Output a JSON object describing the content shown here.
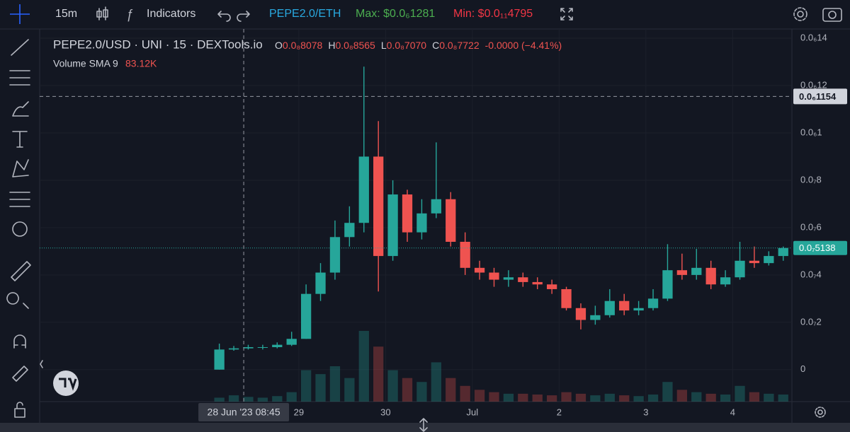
{
  "toolbar": {
    "interval": "15m",
    "indicators": "Indicators",
    "pair": "PEPE2.0/ETH",
    "max": "Max: $0.0₆1281",
    "min": "Min: $0.0₁₁4795"
  },
  "chart_data": {
    "type": "candlestick",
    "title": "PEPE2.0/USD · UNI · 15 · DEXTools.io",
    "ohlc": [
      {
        "key": "O",
        "value": "0.0₈8078"
      },
      {
        "key": "H",
        "value": "0.0₈8565"
      },
      {
        "key": "L",
        "value": "0.0₈7070"
      },
      {
        "key": "C",
        "value": "0.0₈7722"
      }
    ],
    "change": "-0.0000 (−4.41%)",
    "volume_label": "Volume SMA 9",
    "volume_sma": "83.12K",
    "x": [
      2,
      6,
      10,
      14,
      18,
      22,
      26,
      30,
      34,
      38,
      42,
      46,
      50,
      54,
      58,
      62,
      66,
      70,
      74,
      78,
      82,
      86,
      90,
      94,
      98,
      102,
      106,
      110,
      114,
      118,
      122,
      126,
      130,
      134,
      138,
      142,
      146,
      150,
      154,
      158
    ],
    "open": [
      0,
      8.5e-09,
      9e-09,
      9.5e-09,
      9.5e-09,
      1.05e-08,
      1.3e-08,
      3.2e-08,
      4.1e-08,
      5.6e-08,
      6.2e-08,
      9e-08,
      4.8e-08,
      7.4e-08,
      5.8e-08,
      6.6e-08,
      7.2e-08,
      5.4e-08,
      4.3e-08,
      4.1e-08,
      3.8e-08,
      3.9e-08,
      3.7e-08,
      3.6e-08,
      3.4e-08,
      2.6e-08,
      2.1e-08,
      2.3e-08,
      2.9e-08,
      2.5e-08,
      2.6e-08,
      3e-08,
      4.2e-08,
      4e-08,
      4.3e-08,
      3.6e-08,
      3.9e-08,
      4.6e-08,
      4.5e-08,
      4.8e-08
    ],
    "high": [
      1.1e-08,
      1e-08,
      1.05e-08,
      1.05e-08,
      1.15e-08,
      1.6e-08,
      3.6e-08,
      4.5e-08,
      6.3e-08,
      6.9e-08,
      1.28e-07,
      1.05e-07,
      8e-08,
      7.6e-08,
      7.2e-08,
      9.6e-08,
      7.5e-08,
      5.8e-08,
      4.6e-08,
      4.3e-08,
      4.2e-08,
      4.1e-08,
      3.9e-08,
      3.8e-08,
      3.5e-08,
      2.8e-08,
      2.7e-08,
      3.4e-08,
      3.2e-08,
      2.9e-08,
      3.4e-08,
      5.3e-08,
      4.9e-08,
      5.1e-08,
      4.6e-08,
      4.2e-08,
      5.4e-08,
      5.2e-08,
      5e-08,
      5.2e-08
    ],
    "low": [
      0,
      8e-09,
      8.5e-09,
      8.5e-09,
      9e-09,
      1e-08,
      1.3e-08,
      2.9e-08,
      3.8e-08,
      5.2e-08,
      5.8e-08,
      3.3e-08,
      4.6e-08,
      5.4e-08,
      5.5e-08,
      6.4e-08,
      5.2e-08,
      4e-08,
      3.8e-08,
      3.5e-08,
      3.5e-08,
      3.5e-08,
      3.4e-08,
      3.2e-08,
      2.5e-08,
      1.7e-08,
      1.9e-08,
      2.2e-08,
      2.3e-08,
      2.3e-08,
      2.5e-08,
      2.9e-08,
      3.8e-08,
      3.8e-08,
      3.4e-08,
      3.5e-08,
      3.8e-08,
      4.3e-08,
      4.4e-08,
      4.6e-08
    ],
    "close": [
      8.5e-09,
      9e-09,
      9.5e-09,
      9.5e-09,
      1.05e-08,
      1.3e-08,
      3.2e-08,
      4.1e-08,
      5.6e-08,
      6.2e-08,
      9e-08,
      4.8e-08,
      7.4e-08,
      5.8e-08,
      6.6e-08,
      7.2e-08,
      5.4e-08,
      4.3e-08,
      4.1e-08,
      3.8e-08,
      3.9e-08,
      3.7e-08,
      3.6e-08,
      3.4e-08,
      2.6e-08,
      2.1e-08,
      2.3e-08,
      2.9e-08,
      2.5e-08,
      2.6e-08,
      3e-08,
      4.2e-08,
      4e-08,
      4.3e-08,
      3.6e-08,
      3.9e-08,
      4.6e-08,
      4.5e-08,
      4.8e-08,
      5.138e-08
    ],
    "volume": [
      5,
      8,
      6,
      5,
      7,
      12,
      40,
      35,
      45,
      30,
      90,
      70,
      40,
      30,
      25,
      50,
      30,
      20,
      15,
      12,
      10,
      10,
      9,
      8,
      12,
      10,
      8,
      10,
      8,
      7,
      9,
      25,
      15,
      12,
      10,
      9,
      20,
      12,
      10,
      9
    ],
    "up_color": "#26a69a",
    "down_color": "#ef5350",
    "xlim": [
      -47.7,
      160.4
    ],
    "xticks": [
      {
        "value": 24,
        "label": "29"
      },
      {
        "value": 48,
        "label": "30"
      },
      {
        "value": 72,
        "label": "Jul"
      },
      {
        "value": 96,
        "label": "2"
      },
      {
        "value": 120,
        "label": "3"
      },
      {
        "value": 144,
        "label": "4"
      }
    ],
    "ylim": [
      -1.35e-08,
      1.439e-07
    ],
    "yticks": [
      0,
      {
        "value": 2e-08,
        "label": "0.0₇2"
      },
      {
        "value": 4e-08,
        "label": "0.0₇4"
      },
      {
        "value": 6e-08,
        "label": "0.0₇6"
      },
      {
        "value": 8e-08,
        "label": "0.0₇8"
      },
      {
        "value": 1e-07,
        "label": "0.0₆1"
      },
      {
        "value": 1.2e-07,
        "label": "0.0₆12"
      },
      {
        "value": 1.4e-07,
        "label": "0.0₆14"
      }
    ],
    "crosshair": {
      "x": {
        "value": 8.75,
        "label": "28 Jun '23   08:45"
      },
      "y": {
        "value": 1.154e-07,
        "label": "0.0₆1154"
      }
    },
    "last_price": {
      "value": 5.138e-08,
      "label": "0.0₇5138"
    },
    "grid": true
  }
}
